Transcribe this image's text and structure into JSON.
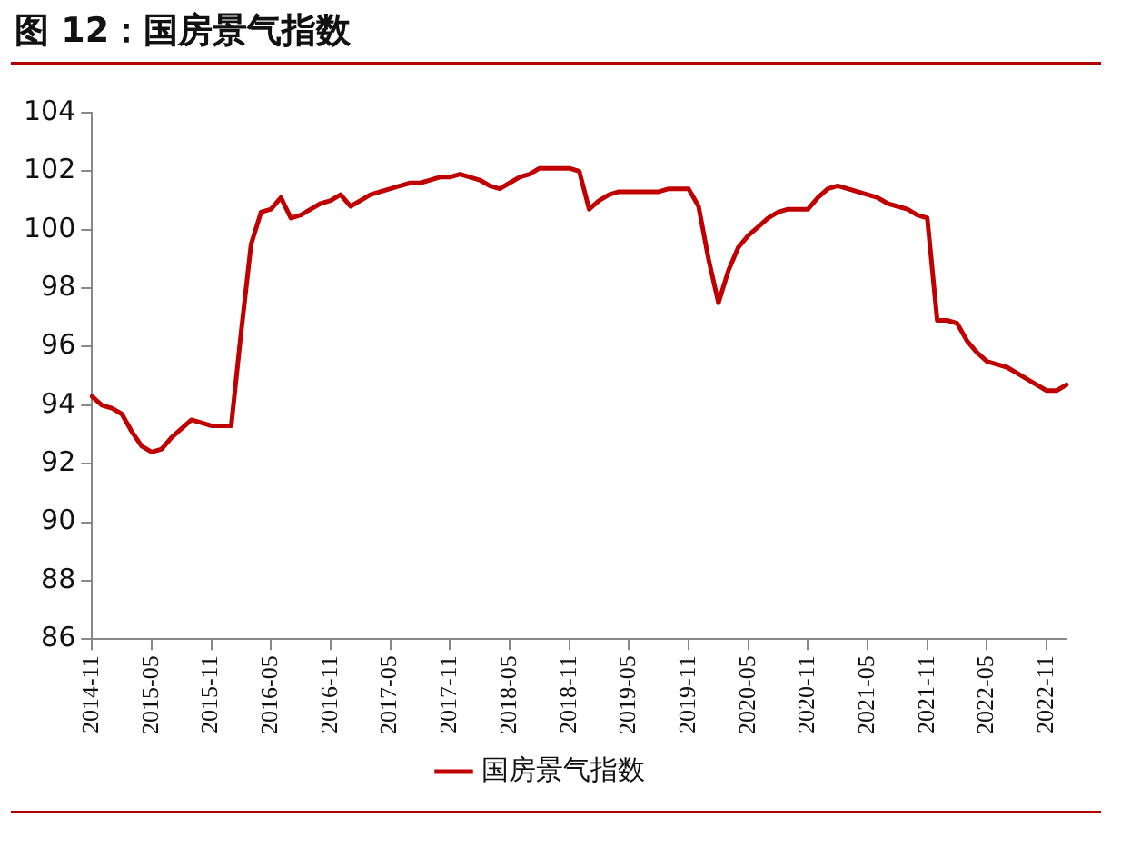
{
  "chart_data": {
    "type": "line",
    "title": "图 12：国房景气指数",
    "categories": [
      "2014-11",
      null,
      null,
      null,
      null,
      null,
      "2015-05",
      null,
      null,
      null,
      null,
      null,
      "2015-11",
      null,
      null,
      null,
      null,
      null,
      "2016-05",
      null,
      null,
      null,
      null,
      null,
      "2016-11",
      null,
      null,
      null,
      null,
      null,
      "2017-05",
      null,
      null,
      null,
      null,
      null,
      "2017-11",
      null,
      null,
      null,
      null,
      null,
      "2018-05",
      null,
      null,
      null,
      null,
      null,
      "2018-11",
      null,
      null,
      null,
      null,
      null,
      "2019-05",
      null,
      null,
      null,
      null,
      null,
      "2019-11",
      null,
      null,
      null,
      null,
      null,
      "2020-05",
      null,
      null,
      null,
      null,
      null,
      "2020-11",
      null,
      null,
      null,
      null,
      null,
      "2021-05",
      null,
      null,
      null,
      null,
      null,
      "2021-11",
      null,
      null,
      null,
      null,
      null,
      "2022-05",
      null,
      null,
      null,
      null,
      null,
      "2022-11",
      null,
      null
    ],
    "series": [
      {
        "name": "国房景气指数",
        "color": "#c00000",
        "values": [
          94.3,
          94.0,
          93.9,
          93.7,
          93.1,
          92.6,
          92.4,
          92.5,
          92.9,
          93.2,
          93.5,
          93.4,
          93.3,
          93.3,
          93.3,
          96.5,
          99.5,
          100.6,
          100.7,
          101.1,
          100.4,
          100.5,
          100.7,
          100.9,
          101.0,
          101.2,
          100.8,
          101.0,
          101.2,
          101.3,
          101.4,
          101.5,
          101.6,
          101.6,
          101.7,
          101.8,
          101.8,
          101.9,
          101.8,
          101.7,
          101.5,
          101.4,
          101.6,
          101.8,
          101.9,
          102.1,
          102.1,
          102.1,
          102.1,
          102.0,
          100.7,
          101.0,
          101.2,
          101.3,
          101.3,
          101.3,
          101.3,
          101.3,
          101.4,
          101.4,
          101.4,
          100.8,
          99.0,
          97.5,
          98.6,
          99.4,
          99.8,
          100.1,
          100.4,
          100.6,
          100.7,
          100.7,
          100.7,
          101.1,
          101.4,
          101.5,
          101.4,
          101.3,
          101.2,
          101.1,
          100.9,
          100.8,
          100.7,
          100.5,
          100.4,
          96.9,
          96.9,
          96.8,
          96.2,
          95.8,
          95.5,
          95.4,
          95.3,
          95.1,
          94.9,
          94.7,
          94.5,
          94.5,
          94.7
        ]
      }
    ],
    "ylim": [
      86,
      104
    ],
    "yticks": [
      86,
      88,
      90,
      92,
      94,
      96,
      98,
      100,
      102,
      104
    ],
    "grid": false,
    "legend": "bottom",
    "marker": "none",
    "line_style": "solid"
  }
}
